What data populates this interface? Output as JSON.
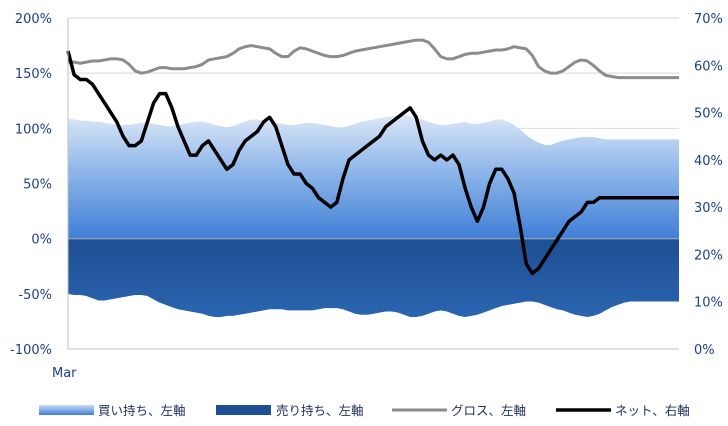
{
  "chart_data": {
    "type": "area",
    "x_label_start": "Mar",
    "left_axis": {
      "min": -100,
      "max": 200,
      "ticks": [
        -100,
        -50,
        0,
        50,
        100,
        150,
        200
      ],
      "tick_labels": [
        "-100%",
        "-50%",
        "0%",
        "50%",
        "100%",
        "150%",
        "200%"
      ]
    },
    "right_axis": {
      "min": 0,
      "max": 70,
      "ticks": [
        0,
        10,
        20,
        30,
        40,
        50,
        60,
        70
      ],
      "tick_labels": [
        "0%",
        "10%",
        "20%",
        "30%",
        "40%",
        "50%",
        "60%",
        "70%"
      ]
    },
    "grid": true,
    "legend_position": "bottom",
    "x": [
      0,
      1,
      2,
      3,
      4,
      5,
      6,
      7,
      8,
      9,
      10,
      11,
      12,
      13,
      14,
      15,
      16,
      17,
      18,
      19,
      20,
      21,
      22,
      23,
      24,
      25,
      26,
      27,
      28,
      29,
      30,
      31,
      32,
      33,
      34,
      35,
      36,
      37,
      38,
      39,
      40,
      41,
      42,
      43,
      44,
      45,
      46,
      47,
      48,
      49,
      50,
      51,
      52,
      53,
      54,
      55,
      56,
      57,
      58,
      59,
      60,
      61,
      62,
      63,
      64,
      65,
      66,
      67,
      68,
      69,
      70,
      71,
      72,
      73,
      74,
      75,
      76,
      77,
      78,
      79,
      80,
      81,
      82,
      83,
      84,
      85,
      86,
      87,
      88,
      89,
      90,
      91,
      92,
      93,
      94,
      95,
      96,
      97,
      98,
      99,
      100
    ],
    "series": [
      {
        "name": "買い持ち、左軸",
        "axis": "left",
        "color": "#3f7fd6",
        "values": [
          109,
          108,
          107,
          107,
          106,
          106,
          105,
          104,
          103,
          103,
          103,
          104,
          105,
          105,
          104,
          103,
          102,
          102,
          103,
          104,
          105,
          106,
          106,
          105,
          103,
          102,
          101,
          102,
          104,
          106,
          108,
          108,
          107,
          106,
          105,
          104,
          103,
          103,
          104,
          105,
          105,
          104,
          103,
          102,
          101,
          101,
          102,
          104,
          106,
          107,
          108,
          109,
          110,
          111,
          112,
          112,
          111,
          110,
          108,
          106,
          104,
          103,
          103,
          104,
          105,
          106,
          104,
          104,
          105,
          106,
          108,
          108,
          106,
          103,
          99,
          94,
          90,
          87,
          85,
          85,
          87,
          89,
          90,
          91,
          92,
          92,
          92,
          91,
          90,
          90,
          90,
          90,
          90,
          90,
          90,
          90,
          90,
          90,
          90,
          90,
          90
        ]
      },
      {
        "name": "売り持ち、左軸",
        "axis": "left",
        "color": "#1f4f93",
        "values": [
          -50,
          -51,
          -51,
          -52,
          -54,
          -56,
          -56,
          -55,
          -54,
          -53,
          -52,
          -51,
          -51,
          -52,
          -55,
          -58,
          -60,
          -62,
          -64,
          -65,
          -66,
          -67,
          -68,
          -70,
          -71,
          -71,
          -70,
          -70,
          -69,
          -68,
          -67,
          -66,
          -65,
          -64,
          -64,
          -64,
          -65,
          -65,
          -65,
          -65,
          -65,
          -64,
          -63,
          -63,
          -63,
          -64,
          -66,
          -68,
          -69,
          -69,
          -68,
          -67,
          -66,
          -66,
          -67,
          -69,
          -71,
          -71,
          -70,
          -68,
          -66,
          -65,
          -66,
          -68,
          -70,
          -71,
          -70,
          -69,
          -67,
          -65,
          -63,
          -61,
          -60,
          -59,
          -58,
          -57,
          -57,
          -58,
          -60,
          -62,
          -64,
          -65,
          -67,
          -69,
          -70,
          -71,
          -70,
          -68,
          -65,
          -62,
          -60,
          -58,
          -57,
          -57,
          -57,
          -57,
          -57,
          -57,
          -57,
          -57,
          -57
        ]
      },
      {
        "name": "グロス、左軸",
        "axis": "left",
        "color": "#8c8c8c",
        "values": [
          160,
          160,
          159,
          160,
          161,
          161,
          162,
          163,
          163,
          162,
          158,
          152,
          150,
          151,
          153,
          155,
          155,
          154,
          154,
          154,
          155,
          156,
          158,
          162,
          163,
          164,
          165,
          168,
          172,
          174,
          175,
          174,
          173,
          172,
          168,
          165,
          165,
          170,
          173,
          172,
          170,
          168,
          166,
          165,
          165,
          166,
          168,
          170,
          171,
          172,
          173,
          174,
          175,
          176,
          177,
          178,
          179,
          180,
          180,
          178,
          172,
          165,
          163,
          163,
          165,
          167,
          168,
          168,
          169,
          170,
          171,
          171,
          172,
          174,
          173,
          172,
          166,
          156,
          152,
          150,
          150,
          152,
          156,
          160,
          162,
          161,
          157,
          152,
          148,
          147,
          146,
          146,
          146,
          146,
          146,
          146,
          146,
          146,
          146,
          146,
          146
        ]
      },
      {
        "name": "ネット、右軸",
        "axis": "right",
        "color": "#000000",
        "values": [
          63,
          58,
          57,
          57,
          56,
          54,
          52,
          50,
          48,
          45,
          43,
          43,
          44,
          48,
          52,
          54,
          54,
          51,
          47,
          44,
          41,
          41,
          43,
          44,
          42,
          40,
          38,
          39,
          42,
          44,
          45,
          46,
          48,
          49,
          47,
          43,
          39,
          37,
          37,
          35,
          34,
          32,
          31,
          30,
          31,
          36,
          40,
          41,
          42,
          43,
          44,
          45,
          47,
          48,
          49,
          50,
          51,
          49,
          44,
          41,
          40,
          41,
          40,
          41,
          39,
          34,
          30,
          27,
          30,
          35,
          38,
          38,
          36,
          33,
          26,
          18,
          16,
          17,
          19,
          21,
          23,
          25,
          27,
          28,
          29,
          31,
          31,
          32,
          32,
          32,
          32,
          32,
          32,
          32,
          32,
          32,
          32,
          32,
          32,
          32,
          32
        ]
      }
    ]
  },
  "legend": {
    "long_label": "買い持ち、左軸",
    "short_label": "売り持ち、左軸",
    "gross_label": "グロス、左軸",
    "net_label": "ネット、右軸"
  }
}
